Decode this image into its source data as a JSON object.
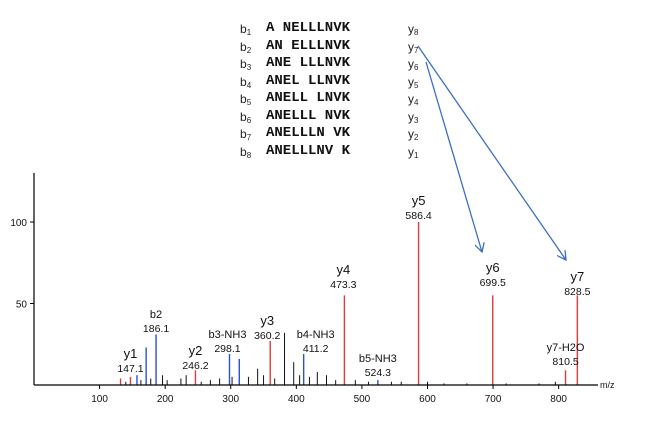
{
  "fragment_table": {
    "rows": [
      {
        "b_sub": "1",
        "seq": "A NELLLNVK",
        "y_sub": "8"
      },
      {
        "b_sub": "2",
        "seq": "AN ELLLNVK",
        "y_sub": "7"
      },
      {
        "b_sub": "3",
        "seq": "ANE LLLNVK",
        "y_sub": "6"
      },
      {
        "b_sub": "4",
        "seq": "ANEL LLNVK",
        "y_sub": "5"
      },
      {
        "b_sub": "5",
        "seq": "ANELL LNVK",
        "y_sub": "4"
      },
      {
        "b_sub": "6",
        "seq": "ANELLL NVK",
        "y_sub": "3"
      },
      {
        "b_sub": "7",
        "seq": "ANELLLN VK",
        "y_sub": "2"
      },
      {
        "b_sub": "8",
        "seq": "ANELLLNV K",
        "y_sub": "1"
      }
    ]
  },
  "colors": {
    "y_ion": "#e03a3a",
    "b_ion": "#2a4fd8",
    "other": "#111111",
    "arrow": "#3a6fc0",
    "axis": "#000000"
  },
  "chart_data": {
    "type": "bar",
    "xlabel": "m/z",
    "xlim": [
      0,
      860
    ],
    "ylim": [
      0,
      130
    ],
    "x_ticks": [
      100,
      200,
      300,
      400,
      500,
      600,
      700,
      800
    ],
    "y_ticks": [
      50,
      100
    ],
    "series": [
      {
        "name": "y",
        "peaks": [
          {
            "x": 147.1,
            "y": 5
          },
          {
            "x": 246.2,
            "y": 9
          },
          {
            "x": 360.2,
            "y": 27
          },
          {
            "x": 473.3,
            "y": 55
          },
          {
            "x": 586.4,
            "y": 100
          },
          {
            "x": 699.5,
            "y": 55
          },
          {
            "x": 810.5,
            "y": 9
          },
          {
            "x": 828.5,
            "y": 55
          },
          {
            "x": 132,
            "y": 4
          }
        ]
      },
      {
        "name": "b",
        "peaks": [
          {
            "x": 171,
            "y": 23
          },
          {
            "x": 186.1,
            "y": 31
          },
          {
            "x": 298.1,
            "y": 19
          },
          {
            "x": 411.2,
            "y": 19
          },
          {
            "x": 524.3,
            "y": 3
          },
          {
            "x": 157,
            "y": 6
          },
          {
            "x": 313,
            "y": 16
          }
        ]
      },
      {
        "name": "other",
        "peaks": [
          {
            "x": 140,
            "y": 2
          },
          {
            "x": 163,
            "y": 3
          },
          {
            "x": 178,
            "y": 4
          },
          {
            "x": 196,
            "y": 6
          },
          {
            "x": 203,
            "y": 3
          },
          {
            "x": 224,
            "y": 4
          },
          {
            "x": 232,
            "y": 6
          },
          {
            "x": 255,
            "y": 2
          },
          {
            "x": 269,
            "y": 3
          },
          {
            "x": 283,
            "y": 4
          },
          {
            "x": 302,
            "y": 5
          },
          {
            "x": 327,
            "y": 5
          },
          {
            "x": 341,
            "y": 10
          },
          {
            "x": 350,
            "y": 6
          },
          {
            "x": 367,
            "y": 4
          },
          {
            "x": 382,
            "y": 32
          },
          {
            "x": 396,
            "y": 14
          },
          {
            "x": 405,
            "y": 6
          },
          {
            "x": 420,
            "y": 5
          },
          {
            "x": 432,
            "y": 8
          },
          {
            "x": 446,
            "y": 6
          },
          {
            "x": 460,
            "y": 3
          },
          {
            "x": 490,
            "y": 3
          },
          {
            "x": 510,
            "y": 2
          },
          {
            "x": 545,
            "y": 2
          },
          {
            "x": 560,
            "y": 2
          },
          {
            "x": 600,
            "y": 2
          },
          {
            "x": 625,
            "y": 1
          },
          {
            "x": 660,
            "y": 1
          },
          {
            "x": 720,
            "y": 1
          },
          {
            "x": 770,
            "y": 1
          },
          {
            "x": 795,
            "y": 2
          }
        ]
      }
    ],
    "annotations": [
      {
        "ion": "y1",
        "mz": "147.1",
        "x": 147.1
      },
      {
        "ion": "b2",
        "mz": "186.1",
        "x": 186.1
      },
      {
        "ion": "y2",
        "mz": "246.2",
        "x": 246.2
      },
      {
        "ion": "b3-NH3",
        "mz": "298.1",
        "x": 298.1
      },
      {
        "ion": "y3",
        "mz": "360.2",
        "x": 360.2
      },
      {
        "ion": "b4-NH3",
        "mz": "411.2",
        "x": 411.2
      },
      {
        "ion": "y4",
        "mz": "473.3",
        "x": 473.3
      },
      {
        "ion": "b5-NH3",
        "mz": "524.3",
        "x": 524.3
      },
      {
        "ion": "y5",
        "mz": "586.4",
        "x": 586.4
      },
      {
        "ion": "y6",
        "mz": "699.5",
        "x": 699.5
      },
      {
        "ion": "y7-H2O",
        "mz": "810.5",
        "x": 810.5
      },
      {
        "ion": "y7",
        "mz": "828.5",
        "x": 828.5
      }
    ]
  }
}
